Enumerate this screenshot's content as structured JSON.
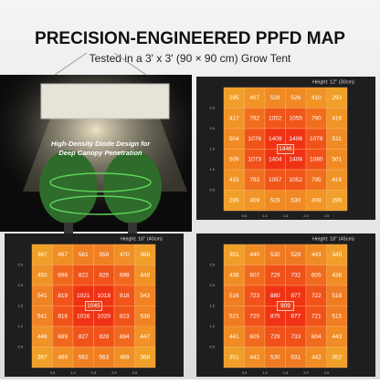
{
  "header": {
    "title": "PRECISION-ENGINEERED PPFD MAP",
    "subtitle": "Tested in a 3' x 3' (90 × 90 cm) Grow Tent"
  },
  "illustration": {
    "caption": [
      "High-Density Diode Design for",
      "Deep Canopy Penetration"
    ]
  },
  "axis_ticks": [
    "0.5",
    "1.0",
    "1.5",
    "2.0",
    "2.5"
  ],
  "maps": [
    {
      "label": "Height: 12'' (30cm)",
      "center": 1446,
      "rows": [
        [
          295,
          407,
          528,
          526,
          410,
          293
        ],
        [
          417,
          792,
          1052,
          1055,
          790,
          416
        ],
        [
          504,
          1076,
          1409,
          1406,
          1076,
          511
        ],
        [
          509,
          1073,
          1404,
          1408,
          1080,
          501
        ],
        [
          415,
          793,
          1057,
          1052,
          795,
          416
        ],
        [
          295,
          409,
          529,
          530,
          409,
          296
        ]
      ]
    },
    {
      "label": "Height: 16'' (40cm)",
      "center": 1045,
      "rows": [
        [
          367,
          467,
          561,
          559,
          470,
          368
        ],
        [
          450,
          698,
          822,
          825,
          698,
          449
        ],
        [
          541,
          819,
          1021,
          1018,
          818,
          543
        ],
        [
          541,
          816,
          1016,
          1020,
          823,
          538
        ],
        [
          448,
          699,
          827,
          829,
          694,
          447
        ],
        [
          367,
          469,
          562,
          563,
          469,
          368
        ]
      ]
    },
    {
      "label": "Height: 18'' (45cm)",
      "center": 909,
      "rows": [
        [
          351,
          440,
          530,
          528,
          443,
          345
        ],
        [
          436,
          607,
          729,
          732,
          605,
          438
        ],
        [
          516,
          723,
          880,
          877,
          722,
          518
        ],
        [
          521,
          720,
          875,
          877,
          721,
          515
        ],
        [
          441,
          605,
          729,
          733,
          604,
          443
        ],
        [
          351,
          442,
          530,
          531,
          442,
          352
        ]
      ]
    }
  ]
}
